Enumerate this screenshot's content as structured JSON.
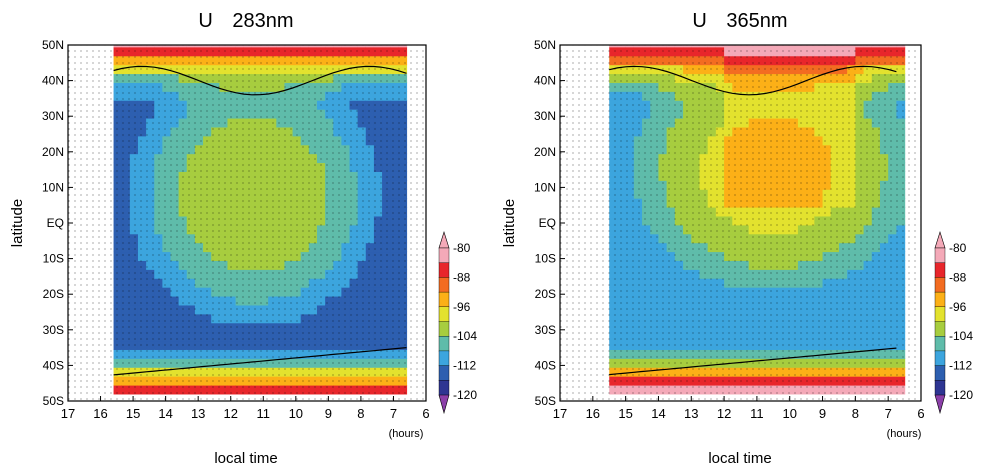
{
  "chart_data": [
    {
      "type": "heatmap",
      "title": "U 283nm",
      "title_parts": [
        "U",
        "283nm"
      ],
      "xlabel": "local time",
      "ylabel": "latitude",
      "xlim": [
        17,
        6
      ],
      "ylim": [
        -50,
        50
      ],
      "x_ticks": [
        "17",
        "16",
        "15",
        "14",
        "13",
        "12",
        "11",
        "10",
        "9",
        "8",
        "7",
        "6"
      ],
      "x_unit": "(hours)",
      "y_ticks": [
        "50S",
        "40S",
        "30S",
        "20S",
        "10S",
        "EQ",
        "10N",
        "20N",
        "30N",
        "40N",
        "50N"
      ],
      "field": "zonal wind speed U (contour-filled), stippled",
      "pattern": "concentric: core about -100 near 11-12 h / 0-15N, decreasing to -112 to -120 near 15 h and 7 h, increasing to -80 to -88 near 50N and 45-50S",
      "core_value": -100,
      "edge_value": -114,
      "high_lat_value": -84
    },
    {
      "type": "heatmap",
      "title": "U 365nm",
      "title_parts": [
        "U",
        "365nm"
      ],
      "xlabel": "local time",
      "ylabel": "latitude",
      "xlim": [
        17,
        6
      ],
      "ylim": [
        -50,
        50
      ],
      "x_ticks": [
        "17",
        "16",
        "15",
        "14",
        "13",
        "12",
        "11",
        "10",
        "9",
        "8",
        "7",
        "6"
      ],
      "x_unit": "(hours)",
      "y_ticks": [
        "50S",
        "40S",
        "30S",
        "20S",
        "10S",
        "EQ",
        "10N",
        "20N",
        "30N",
        "40N",
        "50N"
      ],
      "field": "zonal wind speed U (contour-filled), stippled",
      "pattern": "faster than 283nm: -96 to -100 at low latitudes 9-12 h, -84 to -88 at 30-50N, -112 near 15 h, -88 near 45S 9-12 h",
      "core_value": -97,
      "edge_value": -112,
      "high_lat_value": -83
    }
  ],
  "colorbar": {
    "ticks": [
      "-80",
      "-88",
      "-96",
      "-104",
      "-112",
      "-120"
    ],
    "levels": [
      {
        "lo": -84,
        "hi": -80,
        "color": "#f4a9b8"
      },
      {
        "lo": -88,
        "hi": -84,
        "color": "#e8262b"
      },
      {
        "lo": -92,
        "hi": -88,
        "color": "#f36c21"
      },
      {
        "lo": -96,
        "hi": -92,
        "color": "#fcb017"
      },
      {
        "lo": -100,
        "hi": -96,
        "color": "#e3e22e"
      },
      {
        "lo": -104,
        "hi": -100,
        "color": "#a7cd3f"
      },
      {
        "lo": -108,
        "hi": -104,
        "color": "#5fbcaa"
      },
      {
        "lo": -112,
        "hi": -108,
        "color": "#3ca5de"
      },
      {
        "lo": -116,
        "hi": -112,
        "color": "#2d5fb0"
      },
      {
        "lo": -120,
        "hi": -116,
        "color": "#2e3592"
      }
    ],
    "over_color": "#f4a9b8",
    "under_color": "#8b3fa8"
  }
}
